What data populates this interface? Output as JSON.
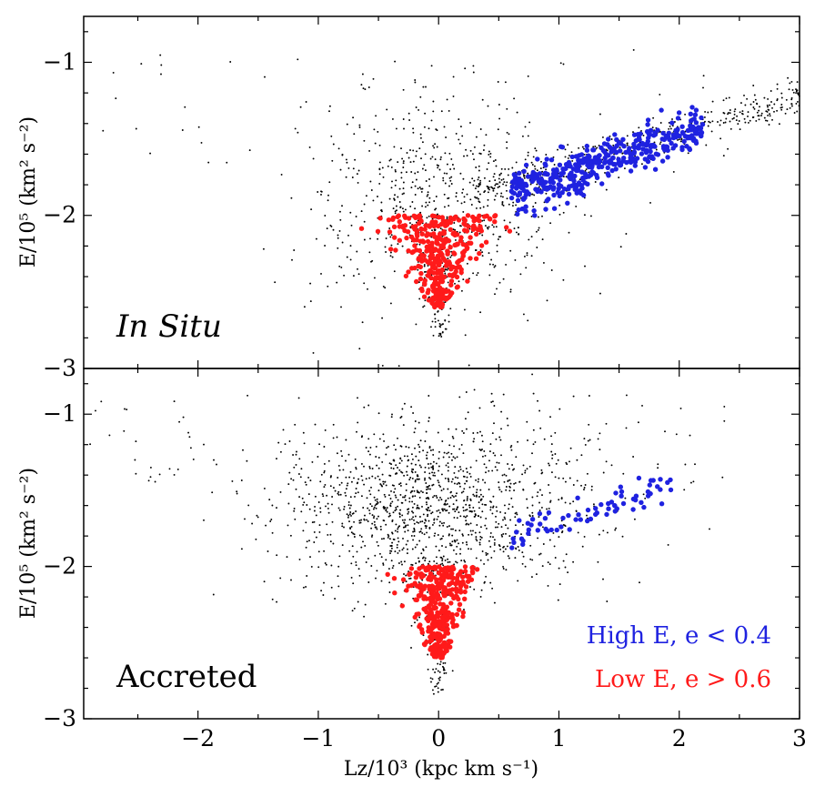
{
  "chart_data": [
    {
      "type": "scatter",
      "panel_label": "In Situ",
      "xlabel": "Lz/10³ (kpc km s⁻¹)",
      "ylabel": "E/10⁵ (km² s⁻²)",
      "xlim": [
        -2.95,
        3.0
      ],
      "ylim": [
        -3.0,
        -0.7
      ],
      "x_ticks": [
        "−2",
        "−1",
        "0",
        "1",
        "2",
        "3"
      ],
      "y_ticks": [
        "−1",
        "−2",
        "−3"
      ],
      "grid": false,
      "series": [
        {
          "color": "#000000",
          "marker": "small-dot",
          "regions": [
            {
              "kind": "cloud",
              "x_mean": 0.0,
              "y_mean": -1.9,
              "x_sd": 0.55,
              "y_sd": 0.35,
              "n": 650
            },
            {
              "kind": "band",
              "x_from": 0.3,
              "x_to": 3.0,
              "y_from": -1.85,
              "y_to": -1.22,
              "spread": 0.06,
              "n": 420
            },
            {
              "kind": "funnel",
              "x_mean": 0.0,
              "y_top": -2.0,
              "y_bottom": -2.8,
              "n": 140
            },
            {
              "kind": "halo",
              "x_range": [
                -2.8,
                2.6
              ],
              "y_range": [
                -1.75,
                -0.9
              ],
              "n": 60
            }
          ]
        },
        {
          "name": "High E, e < 0.4",
          "color": "#1f22e0",
          "marker": "dot",
          "regions": [
            {
              "kind": "band",
              "x_from": 0.6,
              "x_to": 2.2,
              "y_from": -1.85,
              "y_to": -1.42,
              "spread": 0.07,
              "n": 420
            }
          ]
        },
        {
          "name": "Low E, e > 0.6",
          "color": "#ff1a1a",
          "marker": "dot",
          "regions": [
            {
              "kind": "funnel",
              "x_mean": 0.0,
              "x_halfwidth_top": 0.42,
              "y_top": -2.0,
              "y_bottom": -2.6,
              "n": 360
            }
          ]
        }
      ]
    },
    {
      "type": "scatter",
      "panel_label": "Accreted",
      "xlabel": "Lz/10³ (kpc km s⁻¹)",
      "ylabel": "E/10⁵ (km² s⁻²)",
      "xlim": [
        -2.95,
        3.0
      ],
      "ylim": [
        -3.0,
        -0.7
      ],
      "x_ticks": [
        "−2",
        "−1",
        "0",
        "1",
        "2",
        "3"
      ],
      "y_ticks": [
        "−1",
        "−2",
        "−3"
      ],
      "grid": false,
      "legend": {
        "position": "bottom-right",
        "entries": [
          {
            "label": "High E, e < 0.4",
            "color": "#1f22e0"
          },
          {
            "label": "Low E, e > 0.6",
            "color": "#ff1a1a"
          }
        ]
      },
      "series": [
        {
          "color": "#000000",
          "marker": "small-dot",
          "regions": [
            {
              "kind": "cloud",
              "x_mean": -0.05,
              "y_mean": -1.6,
              "x_sd": 0.65,
              "y_sd": 0.26,
              "n": 1300
            },
            {
              "kind": "funnel",
              "x_mean": 0.0,
              "y_top": -1.95,
              "y_bottom": -2.85,
              "n": 160
            },
            {
              "kind": "halo",
              "x_range": [
                -2.9,
                2.4
              ],
              "y_range": [
                -1.5,
                -0.85
              ],
              "n": 90
            }
          ]
        },
        {
          "name": "High E, e < 0.4",
          "color": "#1f22e0",
          "marker": "dot",
          "regions": [
            {
              "kind": "band",
              "x_from": 0.5,
              "x_to": 1.95,
              "y_from": -1.83,
              "y_to": -1.46,
              "spread": 0.05,
              "n": 70
            }
          ]
        },
        {
          "name": "Low E, e > 0.6",
          "color": "#ff1a1a",
          "marker": "dot",
          "regions": [
            {
              "kind": "funnel",
              "x_mean": 0.0,
              "x_halfwidth_top": 0.32,
              "y_top": -2.0,
              "y_bottom": -2.6,
              "n": 330
            }
          ]
        }
      ]
    }
  ]
}
